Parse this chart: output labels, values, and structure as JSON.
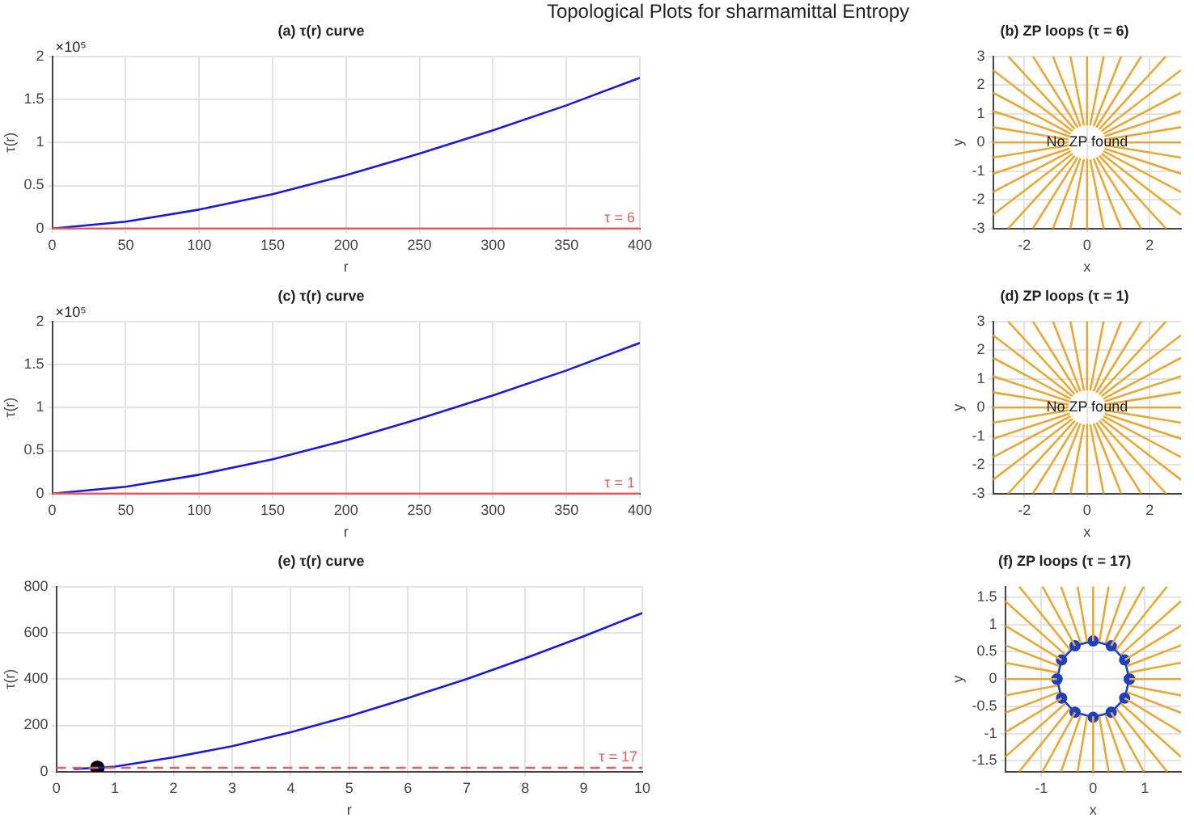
{
  "chart_data": [
    {
      "type": "line",
      "title": "(a) τ(r) curve",
      "xlabel": "r",
      "ylabel": "τ(r)",
      "annotations": [
        "Topological Plots for sharmamittal Entropy",
        {
          "text": "×10⁵"
        },
        "τ = 6"
      ],
      "grid": true,
      "legend": false,
      "series": [
        {
          "color": "#1a1adb",
          "x": [
            0,
            50,
            100,
            150,
            200,
            250,
            300,
            350,
            400
          ],
          "values": [
            0,
            0.08,
            0.22,
            0.4,
            0.62,
            0.87,
            1.14,
            1.43,
            1.75
          ]
        }
      ],
      "xlim": [
        0,
        400
      ],
      "xticks": [
        0,
        50,
        100,
        150,
        200,
        250,
        300,
        350,
        400
      ],
      "ylim": [
        0,
        2
      ],
      "yticks": [
        0,
        0.5,
        1,
        1.5,
        2
      ],
      "ref_lines": [
        {
          "axis": "y",
          "value": 6e-05,
          "color": "#e06060",
          "line_style": "solid"
        }
      ]
    },
    {
      "type": "line",
      "title": "(b) ZP loops (τ = 6)",
      "xlabel": "x",
      "ylabel": "y",
      "annotations": [
        "No ZP found"
      ],
      "grid": true,
      "legend": false,
      "series": [
        {
          "color": "#e8a838",
          "x": [
            0.6,
            3
          ],
          "values": [
            0,
            0
          ]
        },
        {
          "color": "#e8a838",
          "x": [
            0.59,
            3
          ],
          "values": [
            0.1,
            0.53
          ]
        },
        {
          "color": "#e8a838",
          "x": [
            0.56,
            3
          ],
          "values": [
            0.21,
            1.09
          ]
        },
        {
          "color": "#e8a838",
          "x": [
            0.52,
            3
          ],
          "values": [
            0.3,
            1.73
          ]
        },
        {
          "color": "#e8a838",
          "x": [
            0.46,
            3
          ],
          "values": [
            0.39,
            2.52
          ]
        },
        {
          "color": "#e8a838",
          "x": [
            0.39,
            2.52
          ],
          "values": [
            0.46,
            3
          ]
        },
        {
          "color": "#e8a838",
          "x": [
            0.3,
            1.73
          ],
          "values": [
            0.52,
            3
          ]
        },
        {
          "color": "#e8a838",
          "x": [
            0.21,
            1.09
          ],
          "values": [
            0.56,
            3
          ]
        },
        {
          "color": "#e8a838",
          "x": [
            0.1,
            0.53
          ],
          "values": [
            0.59,
            3
          ]
        },
        {
          "color": "#e8a838",
          "x": [
            0,
            0
          ],
          "values": [
            0.6,
            3
          ]
        },
        {
          "color": "#e8a838",
          "x": [
            -0.1,
            -0.53
          ],
          "values": [
            0.59,
            3
          ]
        },
        {
          "color": "#e8a838",
          "x": [
            -0.21,
            -1.09
          ],
          "values": [
            0.56,
            3
          ]
        },
        {
          "color": "#e8a838",
          "x": [
            -0.3,
            -1.73
          ],
          "values": [
            0.52,
            3
          ]
        },
        {
          "color": "#e8a838",
          "x": [
            -0.39,
            -2.52
          ],
          "values": [
            0.46,
            3
          ]
        },
        {
          "color": "#e8a838",
          "x": [
            -0.46,
            -3
          ],
          "values": [
            0.39,
            2.52
          ]
        },
        {
          "color": "#e8a838",
          "x": [
            -0.52,
            -3
          ],
          "values": [
            0.3,
            1.73
          ]
        },
        {
          "color": "#e8a838",
          "x": [
            -0.56,
            -3
          ],
          "values": [
            0.21,
            1.09
          ]
        },
        {
          "color": "#e8a838",
          "x": [
            -0.59,
            -3
          ],
          "values": [
            0.1,
            0.53
          ]
        },
        {
          "color": "#e8a838",
          "x": [
            -0.6,
            -3
          ],
          "values": [
            0,
            0
          ]
        },
        {
          "color": "#e8a838",
          "x": [
            -0.59,
            -3
          ],
          "values": [
            -0.1,
            -0.53
          ]
        },
        {
          "color": "#e8a838",
          "x": [
            -0.56,
            -3
          ],
          "values": [
            -0.21,
            -1.09
          ]
        },
        {
          "color": "#e8a838",
          "x": [
            -0.52,
            -3
          ],
          "values": [
            -0.3,
            -1.73
          ]
        },
        {
          "color": "#e8a838",
          "x": [
            -0.46,
            -3
          ],
          "values": [
            -0.39,
            -2.52
          ]
        },
        {
          "color": "#e8a838",
          "x": [
            -0.39,
            -2.52
          ],
          "values": [
            -0.46,
            -3
          ]
        },
        {
          "color": "#e8a838",
          "x": [
            -0.3,
            -1.73
          ],
          "values": [
            -0.52,
            -3
          ]
        },
        {
          "color": "#e8a838",
          "x": [
            -0.21,
            -1.09
          ],
          "values": [
            -0.56,
            -3
          ]
        },
        {
          "color": "#e8a838",
          "x": [
            -0.1,
            -0.53
          ],
          "values": [
            -0.59,
            -3
          ]
        },
        {
          "color": "#e8a838",
          "x": [
            0,
            0
          ],
          "values": [
            -0.6,
            -3
          ]
        },
        {
          "color": "#e8a838",
          "x": [
            0.1,
            0.53
          ],
          "values": [
            -0.59,
            -3
          ]
        },
        {
          "color": "#e8a838",
          "x": [
            0.21,
            1.09
          ],
          "values": [
            -0.56,
            -3
          ]
        },
        {
          "color": "#e8a838",
          "x": [
            0.3,
            1.73
          ],
          "values": [
            -0.52,
            -3
          ]
        },
        {
          "color": "#e8a838",
          "x": [
            0.39,
            2.52
          ],
          "values": [
            -0.46,
            -3
          ]
        },
        {
          "color": "#e8a838",
          "x": [
            0.46,
            3
          ],
          "values": [
            -0.39,
            -2.52
          ]
        },
        {
          "color": "#e8a838",
          "x": [
            0.52,
            3
          ],
          "values": [
            -0.3,
            -1.73
          ]
        },
        {
          "color": "#e8a838",
          "x": [
            0.56,
            3
          ],
          "values": [
            -0.21,
            -1.09
          ]
        },
        {
          "color": "#e8a838",
          "x": [
            0.59,
            3
          ],
          "values": [
            -0.1,
            -0.53
          ]
        }
      ],
      "xlim": [
        -3,
        3
      ],
      "xticks": [
        -2,
        0,
        2
      ],
      "ylim": [
        -3,
        3
      ],
      "yticks": [
        -3,
        -2,
        -1,
        0,
        1,
        2,
        3
      ]
    },
    {
      "type": "line",
      "title": "(c) τ(r) curve",
      "xlabel": "r",
      "ylabel": "τ(r)",
      "annotations": [
        {
          "text": "×10⁵"
        },
        "τ = 1"
      ],
      "grid": true,
      "legend": false,
      "series": [
        {
          "color": "#1a1adb",
          "x": [
            0,
            50,
            100,
            150,
            200,
            250,
            300,
            350,
            400
          ],
          "values": [
            0,
            0.08,
            0.22,
            0.4,
            0.62,
            0.87,
            1.14,
            1.43,
            1.75
          ]
        }
      ],
      "xlim": [
        0,
        400
      ],
      "xticks": [
        0,
        50,
        100,
        150,
        200,
        250,
        300,
        350,
        400
      ],
      "ylim": [
        0,
        2
      ],
      "yticks": [
        0,
        0.5,
        1,
        1.5,
        2
      ],
      "ref_lines": [
        {
          "axis": "y",
          "value": 1e-05,
          "color": "#e06060",
          "line_style": "solid"
        }
      ]
    },
    {
      "type": "line",
      "title": "(d) ZP loops (τ = 1)",
      "xlabel": "x",
      "ylabel": "y",
      "annotations": [
        "No ZP found"
      ],
      "grid": true,
      "legend": false,
      "series": [
        {
          "color": "#e8a838",
          "x": [
            0.6,
            3
          ],
          "values": [
            0,
            0
          ]
        },
        {
          "color": "#e8a838",
          "x": [
            0.59,
            3
          ],
          "values": [
            0.1,
            0.53
          ]
        },
        {
          "color": "#e8a838",
          "x": [
            0.56,
            3
          ],
          "values": [
            0.21,
            1.09
          ]
        },
        {
          "color": "#e8a838",
          "x": [
            0.52,
            3
          ],
          "values": [
            0.3,
            1.73
          ]
        },
        {
          "color": "#e8a838",
          "x": [
            0.46,
            3
          ],
          "values": [
            0.39,
            2.52
          ]
        },
        {
          "color": "#e8a838",
          "x": [
            0.39,
            2.52
          ],
          "values": [
            0.46,
            3
          ]
        },
        {
          "color": "#e8a838",
          "x": [
            0.3,
            1.73
          ],
          "values": [
            0.52,
            3
          ]
        },
        {
          "color": "#e8a838",
          "x": [
            0.21,
            1.09
          ],
          "values": [
            0.56,
            3
          ]
        },
        {
          "color": "#e8a838",
          "x": [
            0.1,
            0.53
          ],
          "values": [
            0.59,
            3
          ]
        },
        {
          "color": "#e8a838",
          "x": [
            0,
            0
          ],
          "values": [
            0.6,
            3
          ]
        },
        {
          "color": "#e8a838",
          "x": [
            -0.1,
            -0.53
          ],
          "values": [
            0.59,
            3
          ]
        },
        {
          "color": "#e8a838",
          "x": [
            -0.21,
            -1.09
          ],
          "values": [
            0.56,
            3
          ]
        },
        {
          "color": "#e8a838",
          "x": [
            -0.3,
            -1.73
          ],
          "values": [
            0.52,
            3
          ]
        },
        {
          "color": "#e8a838",
          "x": [
            -0.39,
            -2.52
          ],
          "values": [
            0.46,
            3
          ]
        },
        {
          "color": "#e8a838",
          "x": [
            -0.46,
            -3
          ],
          "values": [
            0.39,
            2.52
          ]
        },
        {
          "color": "#e8a838",
          "x": [
            -0.52,
            -3
          ],
          "values": [
            0.3,
            1.73
          ]
        },
        {
          "color": "#e8a838",
          "x": [
            -0.56,
            -3
          ],
          "values": [
            0.21,
            1.09
          ]
        },
        {
          "color": "#e8a838",
          "x": [
            -0.59,
            -3
          ],
          "values": [
            0.1,
            0.53
          ]
        },
        {
          "color": "#e8a838",
          "x": [
            -0.6,
            -3
          ],
          "values": [
            0,
            0
          ]
        },
        {
          "color": "#e8a838",
          "x": [
            -0.59,
            -3
          ],
          "values": [
            -0.1,
            -0.53
          ]
        },
        {
          "color": "#e8a838",
          "x": [
            -0.56,
            -3
          ],
          "values": [
            -0.21,
            -1.09
          ]
        },
        {
          "color": "#e8a838",
          "x": [
            -0.52,
            -3
          ],
          "values": [
            -0.3,
            -1.73
          ]
        },
        {
          "color": "#e8a838",
          "x": [
            -0.46,
            -3
          ],
          "values": [
            -0.39,
            -2.52
          ]
        },
        {
          "color": "#e8a838",
          "x": [
            -0.39,
            -2.52
          ],
          "values": [
            -0.46,
            -3
          ]
        },
        {
          "color": "#e8a838",
          "x": [
            -0.3,
            -1.73
          ],
          "values": [
            -0.52,
            -3
          ]
        },
        {
          "color": "#e8a838",
          "x": [
            -0.21,
            -1.09
          ],
          "values": [
            -0.56,
            -3
          ]
        },
        {
          "color": "#e8a838",
          "x": [
            -0.1,
            -0.53
          ],
          "values": [
            -0.59,
            -3
          ]
        },
        {
          "color": "#e8a838",
          "x": [
            0,
            0
          ],
          "values": [
            -0.6,
            -3
          ]
        },
        {
          "color": "#e8a838",
          "x": [
            0.1,
            0.53
          ],
          "values": [
            -0.59,
            -3
          ]
        },
        {
          "color": "#e8a838",
          "x": [
            0.21,
            1.09
          ],
          "values": [
            -0.56,
            -3
          ]
        },
        {
          "color": "#e8a838",
          "x": [
            0.3,
            1.73
          ],
          "values": [
            -0.52,
            -3
          ]
        },
        {
          "color": "#e8a838",
          "x": [
            0.39,
            2.52
          ],
          "values": [
            -0.46,
            -3
          ]
        },
        {
          "color": "#e8a838",
          "x": [
            0.46,
            3
          ],
          "values": [
            -0.39,
            -2.52
          ]
        },
        {
          "color": "#e8a838",
          "x": [
            0.52,
            3
          ],
          "values": [
            -0.3,
            -1.73
          ]
        },
        {
          "color": "#e8a838",
          "x": [
            0.56,
            3
          ],
          "values": [
            -0.21,
            -1.09
          ]
        },
        {
          "color": "#e8a838",
          "x": [
            0.59,
            3
          ],
          "values": [
            -0.1,
            -0.53
          ]
        }
      ],
      "xlim": [
        -3,
        3
      ],
      "xticks": [
        -2,
        0,
        2
      ],
      "ylim": [
        -3,
        3
      ],
      "yticks": [
        -3,
        -2,
        -1,
        0,
        1,
        2,
        3
      ]
    },
    {
      "type": "line",
      "title": "(e) τ(r) curve",
      "xlabel": "r",
      "ylabel": "τ(r)",
      "grid": true,
      "legend": false,
      "series": [
        {
          "color": "#1a1adb",
          "x": [
            0.3,
            0.7,
            1,
            2,
            3,
            4,
            5,
            6,
            7,
            8,
            9,
            10
          ],
          "values": [
            12,
            17,
            22,
            62,
            110,
            170,
            240,
            318,
            400,
            490,
            585,
            685
          ]
        },
        {
          "type": "scatter",
          "marker": "circle",
          "color": "#000000",
          "x": [
            0.7
          ],
          "values": [
            17
          ]
        }
      ],
      "xlim": [
        0,
        10
      ],
      "xticks": [
        0,
        1,
        2,
        3,
        4,
        5,
        6,
        7,
        8,
        9,
        10
      ],
      "ylim": [
        0,
        800
      ],
      "yticks": [
        0,
        200,
        400,
        600,
        800
      ],
      "ref_lines": [
        {
          "axis": "y",
          "value": 17,
          "label": "τ = 17",
          "color": "#e06060",
          "line_style": "dashed"
        }
      ]
    },
    {
      "type": "line",
      "title": "(f) ZP loops (τ = 17)",
      "xlabel": "x",
      "ylabel": "y",
      "grid": true,
      "legend": false,
      "series": [
        {
          "color": "#e8a838",
          "x": [
            0.7,
            1.7
          ],
          "values": [
            0,
            0
          ]
        },
        {
          "color": "#e8a838",
          "x": [
            0.69,
            1.7
          ],
          "values": [
            0.12,
            0.3
          ]
        },
        {
          "color": "#e8a838",
          "x": [
            0.66,
            1.7
          ],
          "values": [
            0.24,
            0.62
          ]
        },
        {
          "color": "#e8a838",
          "x": [
            0.61,
            1.7
          ],
          "values": [
            0.35,
            0.98
          ]
        },
        {
          "color": "#e8a838",
          "x": [
            0.54,
            1.7
          ],
          "values": [
            0.45,
            1.43
          ]
        },
        {
          "color": "#e8a838",
          "x": [
            0.45,
            1.43
          ],
          "values": [
            0.54,
            1.7
          ]
        },
        {
          "color": "#e8a838",
          "x": [
            0.35,
            0.98
          ],
          "values": [
            0.61,
            1.7
          ]
        },
        {
          "color": "#e8a838",
          "x": [
            0.24,
            0.62
          ],
          "values": [
            0.66,
            1.7
          ]
        },
        {
          "color": "#e8a838",
          "x": [
            0.12,
            0.3
          ],
          "values": [
            0.69,
            1.7
          ]
        },
        {
          "color": "#e8a838",
          "x": [
            0,
            0
          ],
          "values": [
            0.7,
            1.7
          ]
        },
        {
          "color": "#e8a838",
          "x": [
            -0.12,
            -0.3
          ],
          "values": [
            0.69,
            1.7
          ]
        },
        {
          "color": "#e8a838",
          "x": [
            -0.24,
            -0.62
          ],
          "values": [
            0.66,
            1.7
          ]
        },
        {
          "color": "#e8a838",
          "x": [
            -0.35,
            -0.98
          ],
          "values": [
            0.61,
            1.7
          ]
        },
        {
          "color": "#e8a838",
          "x": [
            -0.45,
            -1.43
          ],
          "values": [
            0.54,
            1.7
          ]
        },
        {
          "color": "#e8a838",
          "x": [
            -0.54,
            -1.7
          ],
          "values": [
            0.45,
            1.43
          ]
        },
        {
          "color": "#e8a838",
          "x": [
            -0.61,
            -1.7
          ],
          "values": [
            0.35,
            0.98
          ]
        },
        {
          "color": "#e8a838",
          "x": [
            -0.66,
            -1.7
          ],
          "values": [
            0.24,
            0.62
          ]
        },
        {
          "color": "#e8a838",
          "x": [
            -0.69,
            -1.7
          ],
          "values": [
            0.12,
            0.3
          ]
        },
        {
          "color": "#e8a838",
          "x": [
            -0.7,
            -1.7
          ],
          "values": [
            0,
            0
          ]
        },
        {
          "color": "#e8a838",
          "x": [
            -0.69,
            -1.7
          ],
          "values": [
            -0.12,
            -0.3
          ]
        },
        {
          "color": "#e8a838",
          "x": [
            -0.66,
            -1.7
          ],
          "values": [
            -0.24,
            -0.62
          ]
        },
        {
          "color": "#e8a838",
          "x": [
            -0.61,
            -1.7
          ],
          "values": [
            -0.35,
            -0.98
          ]
        },
        {
          "color": "#e8a838",
          "x": [
            -0.54,
            -1.7
          ],
          "values": [
            -0.45,
            -1.43
          ]
        },
        {
          "color": "#e8a838",
          "x": [
            -0.45,
            -1.43
          ],
          "values": [
            -0.54,
            -1.7
          ]
        },
        {
          "color": "#e8a838",
          "x": [
            -0.35,
            -0.98
          ],
          "values": [
            -0.61,
            -1.7
          ]
        },
        {
          "color": "#e8a838",
          "x": [
            -0.24,
            -0.62
          ],
          "values": [
            -0.66,
            -1.7
          ]
        },
        {
          "color": "#e8a838",
          "x": [
            -0.12,
            -0.3
          ],
          "values": [
            -0.69,
            -1.7
          ]
        },
        {
          "color": "#e8a838",
          "x": [
            0,
            0
          ],
          "values": [
            -0.7,
            -1.7
          ]
        },
        {
          "color": "#e8a838",
          "x": [
            0.12,
            0.3
          ],
          "values": [
            -0.69,
            -1.7
          ]
        },
        {
          "color": "#e8a838",
          "x": [
            0.24,
            0.62
          ],
          "values": [
            -0.66,
            -1.7
          ]
        },
        {
          "color": "#e8a838",
          "x": [
            0.35,
            0.98
          ],
          "values": [
            -0.61,
            -1.7
          ]
        },
        {
          "color": "#e8a838",
          "x": [
            0.45,
            1.43
          ],
          "values": [
            -0.54,
            -1.7
          ]
        },
        {
          "color": "#e8a838",
          "x": [
            0.54,
            1.7
          ],
          "values": [
            -0.45,
            -1.43
          ]
        },
        {
          "color": "#e8a838",
          "x": [
            0.61,
            1.7
          ],
          "values": [
            -0.35,
            -0.98
          ]
        },
        {
          "color": "#e8a838",
          "x": [
            0.66,
            1.7
          ],
          "values": [
            -0.24,
            -0.62
          ]
        },
        {
          "color": "#e8a838",
          "x": [
            0.69,
            1.7
          ],
          "values": [
            -0.12,
            -0.3
          ]
        },
        {
          "marker": "circle",
          "color": "#1f3fbf",
          "x": [
            0.7,
            0.61,
            0.35,
            0,
            -0.35,
            -0.61,
            -0.7
          ],
          "values": [
            0,
            0.35,
            0.61,
            0.7,
            0.61,
            0.35,
            0
          ]
        },
        {
          "marker": "circle",
          "color": "#1f3fbf",
          "x": [
            -0.7,
            -0.61,
            -0.35,
            0,
            0.35,
            0.61,
            0.7
          ],
          "values": [
            0,
            -0.35,
            -0.61,
            -0.7,
            -0.61,
            -0.35,
            0
          ]
        }
      ],
      "xlim": [
        -1.7,
        1.7
      ],
      "xticks": [
        -1,
        0,
        1
      ],
      "ylim": [
        -1.7,
        1.7
      ],
      "yticks": [
        -1.5,
        -1,
        -0.5,
        0,
        0.5,
        1,
        1.5
      ]
    }
  ]
}
